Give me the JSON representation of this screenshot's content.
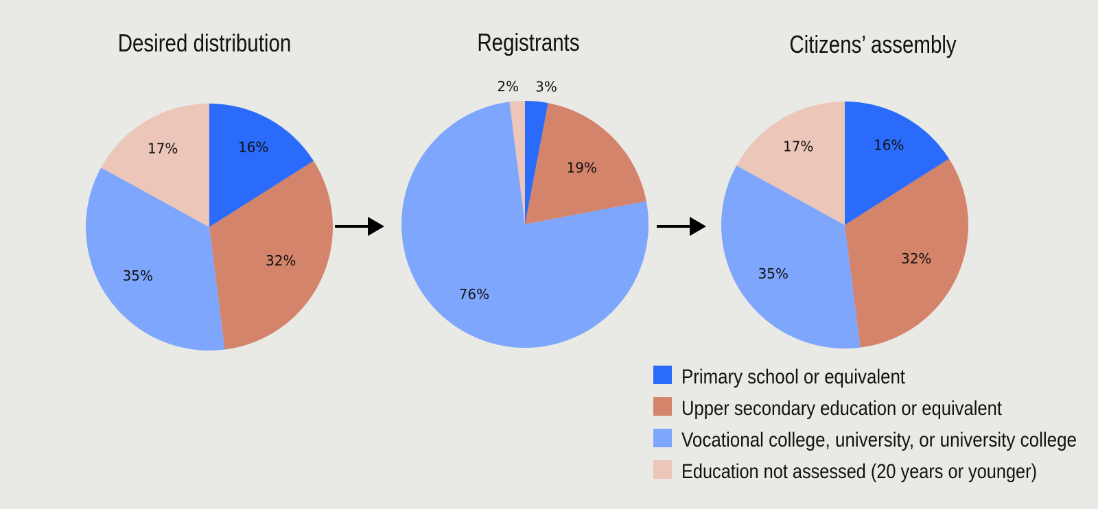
{
  "colors": {
    "background": "#e9e9e5",
    "primary_school": "#2a6bfb",
    "upper_secondary": "#d4846a",
    "vocational_university": "#7fa6fd",
    "not_assessed": "#ecc6b8",
    "arrow": "#000000"
  },
  "chart_data": [
    {
      "type": "pie",
      "title": "Desired distribution",
      "categories": [
        "Primary school or equivalent",
        "Upper secondary education or equivalent",
        "Vocational college, university, or university college",
        "Education not assessed (20 years or younger)"
      ],
      "values": [
        16,
        32,
        35,
        17
      ],
      "labels": [
        "16%",
        "32%",
        "35%",
        "17%"
      ]
    },
    {
      "type": "pie",
      "title": "Registrants",
      "categories": [
        "Primary school or equivalent",
        "Upper secondary education or equivalent",
        "Vocational college, university, or university college",
        "Education not assessed (20 years or younger)"
      ],
      "values": [
        3,
        19,
        76,
        2
      ],
      "labels": [
        "3%",
        "19%",
        "76%",
        "2%"
      ]
    },
    {
      "type": "pie",
      "title": "Citizens’ assembly",
      "categories": [
        "Primary school or equivalent",
        "Upper secondary education or equivalent",
        "Vocational college, university, or university college",
        "Education not assessed (20 years or younger)"
      ],
      "values": [
        16,
        32,
        35,
        17
      ],
      "labels": [
        "16%",
        "32%",
        "35%",
        "17%"
      ]
    }
  ],
  "legend": {
    "items": [
      {
        "label": "Primary school or equivalent",
        "color": "#2a6bfb"
      },
      {
        "label": "Upper secondary education or equivalent",
        "color": "#d4846a"
      },
      {
        "label": "Vocational college, university, or university college",
        "color": "#7fa6fd"
      },
      {
        "label": "Education not assessed (20 years or younger)",
        "color": "#ecc6b8"
      }
    ]
  }
}
